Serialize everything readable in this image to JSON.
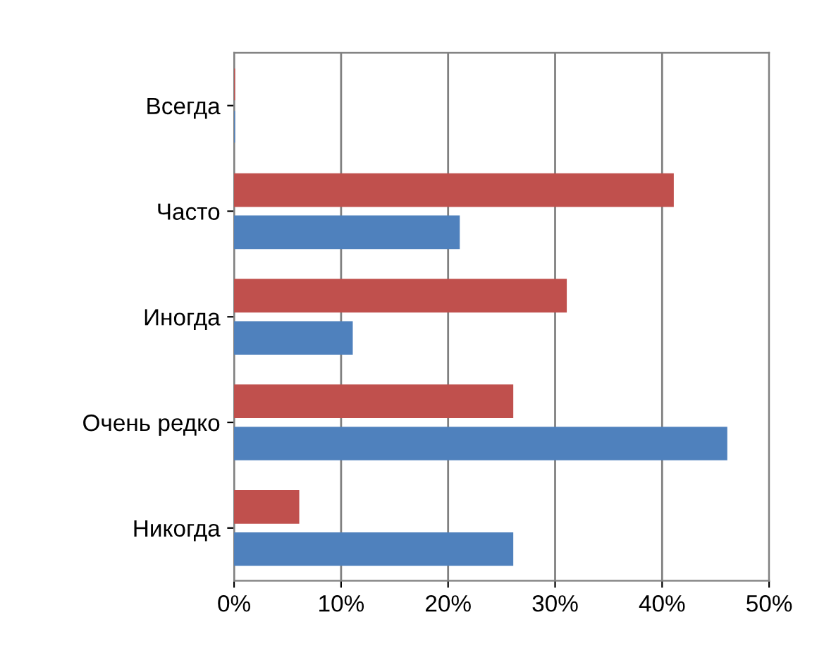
{
  "chart_data": {
    "type": "bar",
    "orientation": "horizontal",
    "categories": [
      "Всегда",
      "Часто",
      "Иногда",
      "Очень редко",
      "Никогда"
    ],
    "series": [
      {
        "color": "#c0504d",
        "values": [
          0,
          41,
          31,
          26,
          6
        ]
      },
      {
        "color": "#4f81bd",
        "values": [
          0,
          21,
          11,
          46,
          26
        ]
      }
    ],
    "xlim": [
      0,
      50
    ],
    "xticks": [
      {
        "value": 0,
        "label": "0%"
      },
      {
        "value": 10,
        "label": "10%"
      },
      {
        "value": 20,
        "label": "20%"
      },
      {
        "value": 30,
        "label": "30%"
      },
      {
        "value": 40,
        "label": "40%"
      },
      {
        "value": 50,
        "label": "50%"
      }
    ],
    "grid": "x"
  }
}
